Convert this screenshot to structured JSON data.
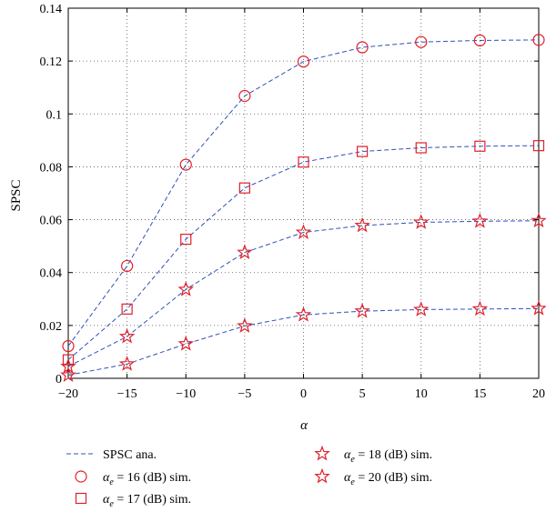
{
  "chart_data": {
    "type": "line",
    "xlabel": "α",
    "ylabel": "SPSC",
    "x": [
      -20,
      -15,
      -10,
      -5,
      0,
      5,
      10,
      15,
      20
    ],
    "xlim": [
      -20,
      20
    ],
    "ylim": [
      0,
      0.14
    ],
    "xticks": [
      -20,
      -15,
      -10,
      -5,
      0,
      5,
      10,
      15,
      20
    ],
    "xtick_labels": [
      "−20",
      "−15",
      "−10",
      "−5",
      "0",
      "5",
      "10",
      "15",
      "20"
    ],
    "yticks": [
      0,
      0.02,
      0.04,
      0.06,
      0.08,
      0.1,
      0.12,
      0.14
    ],
    "ytick_labels": [
      "0",
      "0.02",
      "0.04",
      "0.06",
      "0.08",
      "0.1",
      "0.12",
      "0.14"
    ],
    "grid": true,
    "colors": {
      "line": "#3050b8",
      "marker": "#e0202a"
    },
    "series": [
      {
        "marker": "circle",
        "values": [
          0.0122,
          0.0425,
          0.0808,
          0.1068,
          0.1198,
          0.1252,
          0.1272,
          0.1278,
          0.128
        ]
      },
      {
        "marker": "square",
        "values": [
          0.007,
          0.0262,
          0.0526,
          0.072,
          0.0818,
          0.0858,
          0.0872,
          0.0878,
          0.088
        ]
      },
      {
        "marker": "star",
        "values": [
          0.0045,
          0.0158,
          0.0336,
          0.0476,
          0.0552,
          0.0578,
          0.059,
          0.0594,
          0.0596
        ]
      },
      {
        "marker": "star",
        "values": [
          0.0012,
          0.0054,
          0.013,
          0.0198,
          0.024,
          0.0254,
          0.026,
          0.0262,
          0.0264
        ]
      }
    ],
    "legend": {
      "placement": "bottom",
      "entries": [
        {
          "symbol": "dash",
          "text": "SPSC ana."
        },
        {
          "symbol": "circle",
          "text": "αe = 16 (dB) sim.",
          "sym": "α",
          "sub": "e",
          "rest": " = 16 (dB) sim."
        },
        {
          "symbol": "square",
          "text": "αe = 17 (dB) sim.",
          "sym": "α",
          "sub": "e",
          "rest": " = 17 (dB) sim."
        },
        {
          "symbol": "star",
          "text": "αe = 18 (dB) sim.",
          "sym": "α",
          "sub": "e",
          "rest": " = 18 (dB) sim."
        },
        {
          "symbol": "star",
          "text": "αe = 20 (dB) sim.",
          "sym": "α",
          "sub": "e",
          "rest": " = 20 (dB) sim."
        }
      ]
    }
  }
}
